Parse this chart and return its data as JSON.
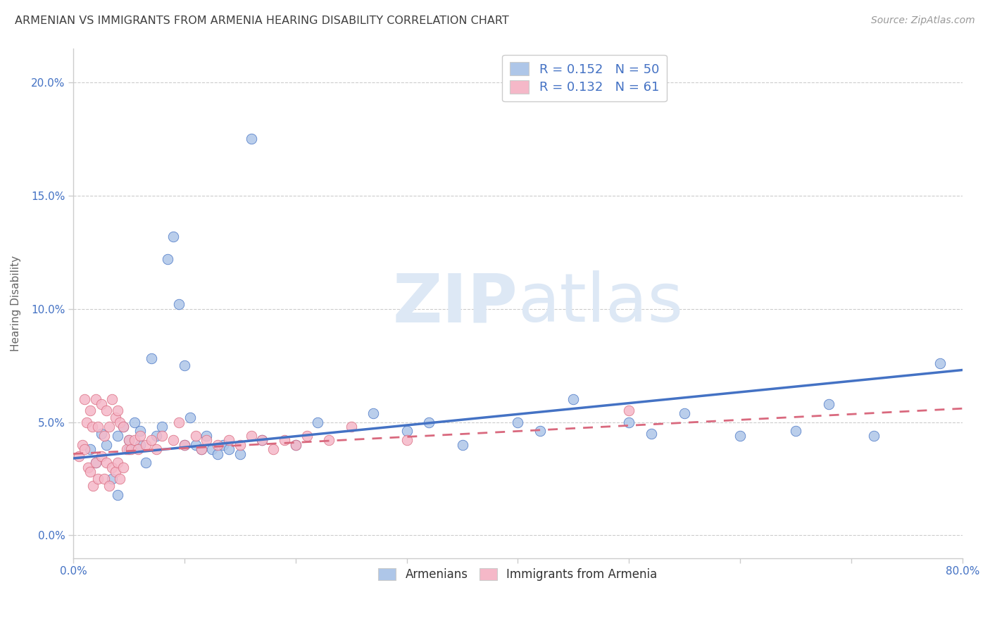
{
  "title": "ARMENIAN VS IMMIGRANTS FROM ARMENIA HEARING DISABILITY CORRELATION CHART",
  "source": "Source: ZipAtlas.com",
  "ylabel": "Hearing Disability",
  "xlim": [
    0.0,
    0.8
  ],
  "ylim": [
    -0.01,
    0.215
  ],
  "yticks": [
    0.0,
    0.05,
    0.1,
    0.15,
    0.2
  ],
  "ytick_labels": [
    "0.0%",
    "5.0%",
    "10.0%",
    "15.0%",
    "20.0%"
  ],
  "xticks": [
    0.0,
    0.1,
    0.2,
    0.3,
    0.4,
    0.5,
    0.6,
    0.7,
    0.8
  ],
  "xtick_labels": [
    "0.0%",
    "",
    "",
    "",
    "",
    "",
    "",
    "",
    "80.0%"
  ],
  "blue_R": "0.152",
  "blue_N": "50",
  "pink_R": "0.132",
  "pink_N": "61",
  "blue_color": "#aec6e8",
  "pink_color": "#f5b8c8",
  "blue_line_color": "#4472c4",
  "pink_line_color": "#d9697e",
  "axis_label_color": "#4472c4",
  "title_color": "#404040",
  "watermark_color": "#dde8f5",
  "blue_line_x0": 0.0,
  "blue_line_x1": 0.8,
  "blue_line_y0": 0.034,
  "blue_line_y1": 0.073,
  "pink_line_x0": 0.0,
  "pink_line_x1": 0.8,
  "pink_line_y0": 0.036,
  "pink_line_y1": 0.056,
  "blue_scatter_x": [
    0.015,
    0.02,
    0.025,
    0.03,
    0.035,
    0.04,
    0.04,
    0.045,
    0.05,
    0.05,
    0.055,
    0.06,
    0.06,
    0.065,
    0.07,
    0.075,
    0.08,
    0.085,
    0.09,
    0.095,
    0.1,
    0.1,
    0.105,
    0.11,
    0.115,
    0.12,
    0.125,
    0.13,
    0.135,
    0.14,
    0.15,
    0.16,
    0.17,
    0.2,
    0.22,
    0.27,
    0.3,
    0.32,
    0.35,
    0.4,
    0.42,
    0.45,
    0.5,
    0.52,
    0.55,
    0.6,
    0.65,
    0.68,
    0.72,
    0.78
  ],
  "blue_scatter_y": [
    0.038,
    0.032,
    0.045,
    0.04,
    0.025,
    0.018,
    0.044,
    0.048,
    0.038,
    0.042,
    0.05,
    0.04,
    0.046,
    0.032,
    0.078,
    0.044,
    0.048,
    0.122,
    0.132,
    0.102,
    0.075,
    0.04,
    0.052,
    0.04,
    0.038,
    0.044,
    0.038,
    0.036,
    0.04,
    0.038,
    0.036,
    0.175,
    0.042,
    0.04,
    0.05,
    0.054,
    0.046,
    0.05,
    0.04,
    0.05,
    0.046,
    0.06,
    0.05,
    0.045,
    0.054,
    0.044,
    0.046,
    0.058,
    0.044,
    0.076
  ],
  "pink_scatter_x": [
    0.005,
    0.008,
    0.01,
    0.01,
    0.012,
    0.013,
    0.015,
    0.015,
    0.017,
    0.018,
    0.02,
    0.02,
    0.022,
    0.022,
    0.025,
    0.025,
    0.028,
    0.028,
    0.03,
    0.03,
    0.032,
    0.032,
    0.035,
    0.035,
    0.038,
    0.038,
    0.04,
    0.04,
    0.042,
    0.042,
    0.045,
    0.045,
    0.048,
    0.05,
    0.052,
    0.055,
    0.058,
    0.06,
    0.065,
    0.07,
    0.075,
    0.08,
    0.09,
    0.095,
    0.1,
    0.11,
    0.115,
    0.12,
    0.13,
    0.14,
    0.15,
    0.16,
    0.17,
    0.18,
    0.19,
    0.2,
    0.21,
    0.23,
    0.25,
    0.3,
    0.5
  ],
  "pink_scatter_y": [
    0.035,
    0.04,
    0.06,
    0.038,
    0.05,
    0.03,
    0.055,
    0.028,
    0.048,
    0.022,
    0.06,
    0.032,
    0.048,
    0.025,
    0.058,
    0.035,
    0.044,
    0.025,
    0.055,
    0.032,
    0.048,
    0.022,
    0.06,
    0.03,
    0.052,
    0.028,
    0.055,
    0.032,
    0.05,
    0.025,
    0.048,
    0.03,
    0.038,
    0.042,
    0.038,
    0.042,
    0.038,
    0.044,
    0.04,
    0.042,
    0.038,
    0.044,
    0.042,
    0.05,
    0.04,
    0.044,
    0.038,
    0.042,
    0.04,
    0.042,
    0.04,
    0.044,
    0.042,
    0.038,
    0.042,
    0.04,
    0.044,
    0.042,
    0.048,
    0.042,
    0.055
  ]
}
